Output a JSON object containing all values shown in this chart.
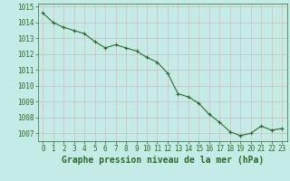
{
  "x": [
    0,
    1,
    2,
    3,
    4,
    5,
    6,
    7,
    8,
    9,
    10,
    11,
    12,
    13,
    14,
    15,
    16,
    17,
    18,
    19,
    20,
    21,
    22,
    23
  ],
  "y": [
    1014.6,
    1014.0,
    1013.7,
    1013.5,
    1013.3,
    1012.8,
    1012.4,
    1012.6,
    1012.4,
    1012.2,
    1011.8,
    1011.5,
    1010.8,
    1009.5,
    1009.3,
    1008.9,
    1008.2,
    1007.7,
    1007.1,
    1006.85,
    1007.0,
    1007.45,
    1007.2,
    1007.3
  ],
  "line_color": "#2d6a2d",
  "marker_color": "#2d6a2d",
  "bg_color": "#c5ebe7",
  "grid_color_h": "#c0c0c0",
  "grid_color_v": "#e0b8b8",
  "axis_color": "#2d6a2d",
  "xlabel": "Graphe pression niveau de la mer (hPa)",
  "ylim_min": 1006.5,
  "ylim_max": 1015.2,
  "xticks": [
    0,
    1,
    2,
    3,
    4,
    5,
    6,
    7,
    8,
    9,
    10,
    11,
    12,
    13,
    14,
    15,
    16,
    17,
    18,
    19,
    20,
    21,
    22,
    23
  ],
  "yticks": [
    1007,
    1008,
    1009,
    1010,
    1011,
    1012,
    1013,
    1014,
    1015
  ],
  "tick_fontsize": 5.5,
  "label_fontsize": 7.0
}
